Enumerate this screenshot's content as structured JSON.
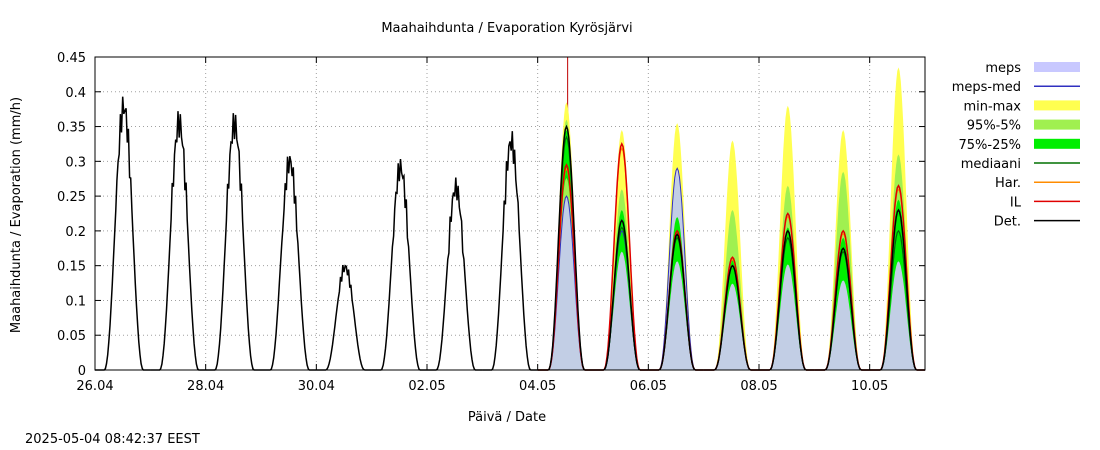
{
  "chart_data": {
    "type": "line",
    "title": "Maahaihdunta / Evaporation  Kyrösjärvi",
    "xlabel": "Päivä / Date",
    "ylabel": "Maahaihdunta / Evaporation (mm/h)",
    "timestamp": "2025-05-04 08:42:37 EEST",
    "x_unit": "date",
    "xlim": [
      "2025-04-26",
      "2025-05-11"
    ],
    "ylim": [
      0,
      0.45
    ],
    "x_tick_labels": [
      "26.04",
      "28.04",
      "30.04",
      "02.05",
      "04.05",
      "06.05",
      "08.05",
      "10.05"
    ],
    "y_tick_labels": [
      "0",
      "0.05",
      "0.1",
      "0.15",
      "0.2",
      "0.25",
      "0.3",
      "0.35",
      "0.4",
      "0.45"
    ],
    "grid": true,
    "legend_position": "right",
    "forecast_start": "2025-05-04 13:00",
    "legend": [
      {
        "label": "meps",
        "kind": "band",
        "color": "#c8c8ff"
      },
      {
        "label": "meps-med",
        "kind": "line",
        "color": "#3030c0"
      },
      {
        "label": "min-max",
        "kind": "band",
        "color": "#ffff50"
      },
      {
        "label": "95%-5%",
        "kind": "band",
        "color": "#a0f050"
      },
      {
        "label": "75%-25%",
        "kind": "band",
        "color": "#00ee00"
      },
      {
        "label": "mediaani",
        "kind": "line",
        "color": "#007000"
      },
      {
        "label": "Har.",
        "kind": "line",
        "color": "#ff8c00"
      },
      {
        "label": "IL",
        "kind": "line",
        "color": "#e00000"
      },
      {
        "label": "Det.",
        "kind": "line",
        "color": "#000000"
      }
    ],
    "observed_daily_peaks": [
      {
        "date": "2025-04-26",
        "peak": 0.378
      },
      {
        "date": "2025-04-27",
        "peak": 0.355
      },
      {
        "date": "2025-04-28",
        "peak": 0.353
      },
      {
        "date": "2025-04-29",
        "peak": 0.3
      },
      {
        "date": "2025-04-30",
        "peak": 0.148
      },
      {
        "date": "2025-05-01",
        "peak": 0.291
      },
      {
        "date": "2025-05-02",
        "peak": 0.262
      },
      {
        "date": "2025-05-03",
        "peak": 0.328
      }
    ],
    "forecast_daily_peaks": [
      {
        "date": "2025-05-04",
        "det": 0.35,
        "il": 0.295,
        "median": 0.335,
        "p25": 0.3,
        "p75": 0.345,
        "p5": 0.27,
        "p95": 0.36,
        "min": 0.25,
        "max": 0.385,
        "meps": 0.25
      },
      {
        "date": "2025-05-05",
        "det": 0.215,
        "il": 0.325,
        "median": 0.205,
        "p25": 0.185,
        "p75": 0.23,
        "p5": 0.16,
        "p95": 0.26,
        "min": 0.15,
        "max": 0.345,
        "meps": 0.2
      },
      {
        "date": "2025-05-06",
        "det": 0.195,
        "il": 0.2,
        "median": 0.19,
        "p25": 0.17,
        "p75": 0.22,
        "p5": 0.13,
        "p95": 0.28,
        "min": 0.12,
        "max": 0.355,
        "meps": 0.29
      },
      {
        "date": "2025-05-07",
        "det": 0.15,
        "il": 0.162,
        "median": 0.15,
        "p25": 0.135,
        "p75": 0.16,
        "p5": 0.12,
        "p95": 0.23,
        "min": 0.11,
        "max": 0.33,
        "meps": 0.15
      },
      {
        "date": "2025-05-08",
        "det": 0.2,
        "il": 0.225,
        "median": 0.19,
        "p25": 0.165,
        "p75": 0.205,
        "p5": 0.12,
        "p95": 0.265,
        "min": 0.1,
        "max": 0.38,
        "meps": 0.19
      },
      {
        "date": "2025-05-09",
        "det": 0.175,
        "il": 0.2,
        "median": 0.17,
        "p25": 0.14,
        "p75": 0.19,
        "p5": 0.1,
        "p95": 0.285,
        "min": 0.08,
        "max": 0.345,
        "meps": 0.17
      },
      {
        "date": "2025-05-10",
        "det": 0.23,
        "il": 0.265,
        "median": 0.2,
        "p25": 0.17,
        "p75": 0.245,
        "p5": 0.14,
        "p95": 0.31,
        "min": 0.12,
        "max": 0.435,
        "meps": 0.2
      }
    ]
  }
}
